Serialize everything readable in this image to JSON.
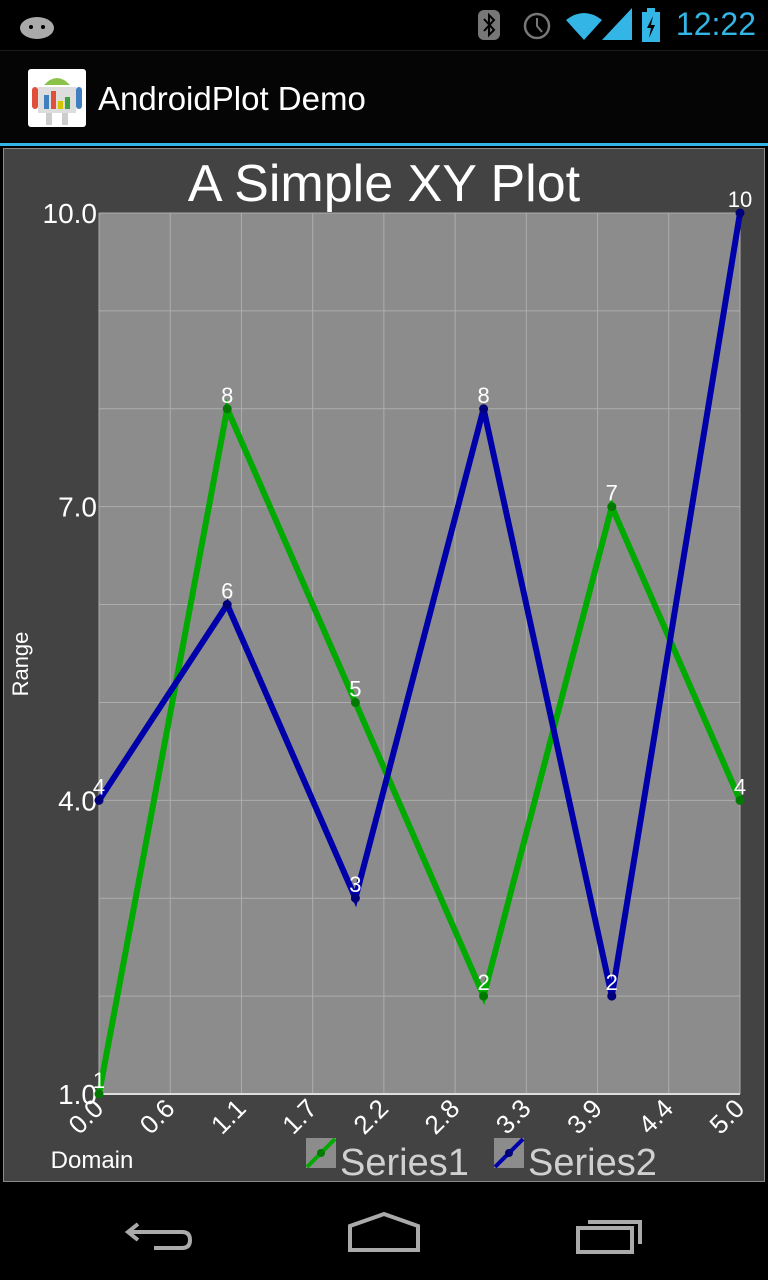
{
  "status_bar": {
    "time": "12:22",
    "icons": [
      "android-debug-icon",
      "bluetooth-icon",
      "alarm-icon",
      "wifi-icon",
      "signal-icon",
      "battery-charging-icon"
    ]
  },
  "action_bar": {
    "title": "AndroidPlot Demo",
    "icon": "androidplot-app-icon"
  },
  "nav_bar": {
    "icons": [
      "back-icon",
      "home-icon",
      "recents-icon"
    ]
  },
  "colors": {
    "accent": "#33b5e5",
    "series1": "#00aa00",
    "series2": "#0000aa",
    "plot_bg": "#8c8c8c",
    "widget_bg": "#434343"
  },
  "chart_data": {
    "type": "line",
    "title": "A Simple XY Plot",
    "xlabel": "Domain",
    "ylabel": "Range",
    "xlim": [
      0,
      5
    ],
    "ylim": [
      1,
      10
    ],
    "x": [
      0,
      1,
      2,
      3,
      4,
      5
    ],
    "x_tick_labels": [
      "0.0",
      "0.6",
      "1.1",
      "1.7",
      "2.2",
      "2.8",
      "3.3",
      "3.9",
      "4.4",
      "5.0"
    ],
    "y_tick_labels": [
      {
        "value": 1,
        "label": "1.0"
      },
      {
        "value": 4,
        "label": "4.0"
      },
      {
        "value": 7,
        "label": "7.0"
      },
      {
        "value": 10,
        "label": "10.0"
      }
    ],
    "grid": true,
    "legend_position": "bottom",
    "series": [
      {
        "name": "Series1",
        "color": "#00aa00",
        "values": [
          1,
          8,
          5,
          2,
          7,
          4
        ]
      },
      {
        "name": "Series2",
        "color": "#0000aa",
        "values": [
          4,
          6,
          3,
          8,
          2,
          10
        ]
      }
    ]
  }
}
